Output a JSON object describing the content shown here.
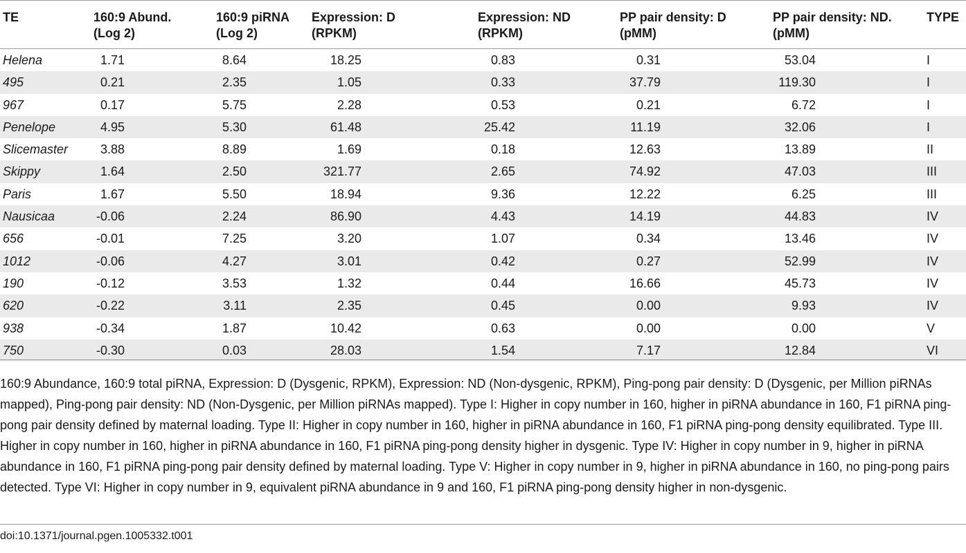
{
  "headers": [
    {
      "line1": "TE",
      "line2": ""
    },
    {
      "line1": "160:9 Abund.",
      "line2": "(Log 2)"
    },
    {
      "line1": "160:9 piRNA",
      "line2": "(Log 2)"
    },
    {
      "line1": "Expression: D",
      "line2": "(RPKM)"
    },
    {
      "line1": "Expression: ND",
      "line2": "(RPKM)"
    },
    {
      "line1": "PP pair density: D",
      "line2": "(pMM)"
    },
    {
      "line1": "PP pair density: ND.",
      "line2": "(pMM)"
    },
    {
      "line1": "TYPE",
      "line2": ""
    }
  ],
  "rows": [
    [
      "Helena",
      "1.71",
      "8.64",
      "18.25",
      "0.83",
      "0.31",
      "53.04",
      "I"
    ],
    [
      "495",
      "0.21",
      "2.35",
      "1.05",
      "0.33",
      "37.79",
      "119.30",
      "I"
    ],
    [
      "967",
      "0.17",
      "5.75",
      "2.28",
      "0.53",
      "0.21",
      "6.72",
      "I"
    ],
    [
      "Penelope",
      "4.95",
      "5.30",
      "61.48",
      "25.42",
      "11.19",
      "32.06",
      "I"
    ],
    [
      "Slicemaster",
      "3.88",
      "8.89",
      "1.69",
      "0.18",
      "12.63",
      "13.89",
      "II"
    ],
    [
      "Skippy",
      "1.64",
      "2.50",
      "321.77",
      "2.65",
      "74.92",
      "47.03",
      "III"
    ],
    [
      "Paris",
      "1.67",
      "5.50",
      "18.94",
      "9.36",
      "12.22",
      "6.25",
      "III"
    ],
    [
      "Nausicaa",
      "-0.06",
      "2.24",
      "86.90",
      "4.43",
      "14.19",
      "44.83",
      "IV"
    ],
    [
      "656",
      "-0.01",
      "7.25",
      "3.20",
      "1.07",
      "0.34",
      "13.46",
      "IV"
    ],
    [
      "1012",
      "-0.06",
      "4.27",
      "3.01",
      "0.42",
      "0.27",
      "52.99",
      "IV"
    ],
    [
      "190",
      "-0.12",
      "3.53",
      "1.32",
      "0.44",
      "16.66",
      "45.73",
      "IV"
    ],
    [
      "620",
      "-0.22",
      "3.11",
      "2.35",
      "0.45",
      "0.00",
      "9.93",
      "IV"
    ],
    [
      "938",
      "-0.34",
      "1.87",
      "10.42",
      "0.63",
      "0.00",
      "0.00",
      "V"
    ],
    [
      "750",
      "-0.30",
      "0.03",
      "28.03",
      "1.54",
      "7.17",
      "12.84",
      "VI"
    ]
  ],
  "footnote": "160:9 Abundance, 160:9 total piRNA, Expression: D (Dysgenic, RPKM), Expression: ND (Non-dysgenic, RPKM), Ping-pong pair density: D (Dysgenic, per Million piRNAs mapped), Ping-pong pair density: ND (Non-Dysgenic, per Million piRNAs mapped). Type I: Higher in copy number in 160, higher in piRNA abundance in 160, F1 piRNA ping-pong pair density defined by maternal loading. Type II: Higher in copy number in 160, higher in piRNA abundance in 160, F1 piRNA ping-pong density equilibrated. Type III. Higher in copy number in 160, higher in piRNA abundance in 160, F1 piRNA ping-pong density higher in dysgenic. Type IV: Higher in copy number in 9, higher in piRNA abundance in 160, F1 piRNA ping-pong pair density defined by maternal loading. Type V: Higher in copy number in 9, higher in piRNA abundance in 160, no ping-pong pairs detected. Type VI: Higher in copy number in 9, equivalent piRNA abundance in 9 and 160, F1 piRNA ping-pong density higher in non-dysgenic.",
  "doi": "doi:10.1371/journal.pgen.1005332.t001"
}
